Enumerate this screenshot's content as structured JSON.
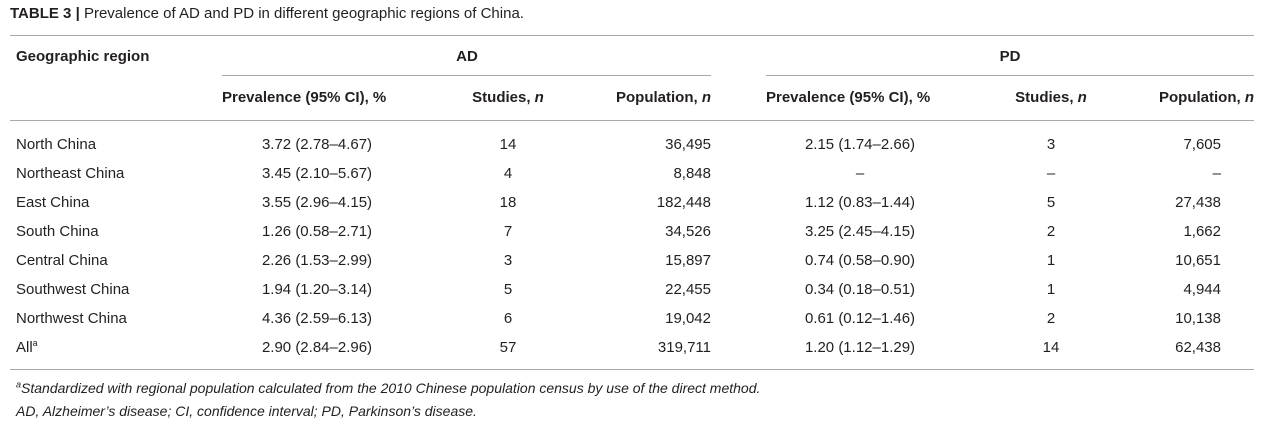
{
  "caption": {
    "label": "TABLE 3",
    "separator": "|",
    "text": "Prevalence of AD and PD in different geographic regions of China."
  },
  "header": {
    "region": "Geographic region",
    "group_ad": "AD",
    "group_pd": "PD",
    "prevalence": "Prevalence (95% CI), %",
    "studies": "Studies, ",
    "population": "Population, ",
    "n": "n"
  },
  "rows": [
    {
      "region": "North China",
      "sup": "",
      "ad_prev": "3.72 (2.78–4.67)",
      "ad_studies": "14",
      "ad_pop": "36,495",
      "pd_prev": "2.15 (1.74–2.66)",
      "pd_studies": "3",
      "pd_pop": "7,605"
    },
    {
      "region": "Northeast China",
      "sup": "",
      "ad_prev": "3.45 (2.10–5.67)",
      "ad_studies": "4",
      "ad_pop": "8,848",
      "pd_prev": "–",
      "pd_studies": "–",
      "pd_pop": "–"
    },
    {
      "region": "East China",
      "sup": "",
      "ad_prev": "3.55 (2.96–4.15)",
      "ad_studies": "18",
      "ad_pop": "182,448",
      "pd_prev": "1.12 (0.83–1.44)",
      "pd_studies": "5",
      "pd_pop": "27,438"
    },
    {
      "region": "South China",
      "sup": "",
      "ad_prev": "1.26 (0.58–2.71)",
      "ad_studies": "7",
      "ad_pop": "34,526",
      "pd_prev": "3.25 (2.45–4.15)",
      "pd_studies": "2",
      "pd_pop": "1,662"
    },
    {
      "region": "Central China",
      "sup": "",
      "ad_prev": "2.26 (1.53–2.99)",
      "ad_studies": "3",
      "ad_pop": "15,897",
      "pd_prev": "0.74 (0.58–0.90)",
      "pd_studies": "1",
      "pd_pop": "10,651"
    },
    {
      "region": "Southwest China",
      "sup": "",
      "ad_prev": "1.94 (1.20–3.14)",
      "ad_studies": "5",
      "ad_pop": "22,455",
      "pd_prev": "0.34 (0.18–0.51)",
      "pd_studies": "1",
      "pd_pop": "4,944"
    },
    {
      "region": "Northwest China",
      "sup": "",
      "ad_prev": "4.36 (2.59–6.13)",
      "ad_studies": "6",
      "ad_pop": "19,042",
      "pd_prev": "0.61 (0.12–1.46)",
      "pd_studies": "2",
      "pd_pop": "10,138"
    },
    {
      "region": "All",
      "sup": "a",
      "ad_prev": "2.90 (2.84–2.96)",
      "ad_studies": "57",
      "ad_pop": "319,711",
      "pd_prev": "1.20 (1.12–1.29)",
      "pd_studies": "14",
      "pd_pop": "62,438"
    }
  ],
  "footnotes": {
    "marker": "a",
    "note_a": "Standardized with regional population calculated from the 2010 Chinese population census by use of the direct method.",
    "abbreviations": "AD, Alzheimer’s disease; CI, confidence interval; PD, Parkinson’s disease."
  },
  "colors": {
    "text": "#231f20",
    "rule": "#a7a9ac"
  }
}
